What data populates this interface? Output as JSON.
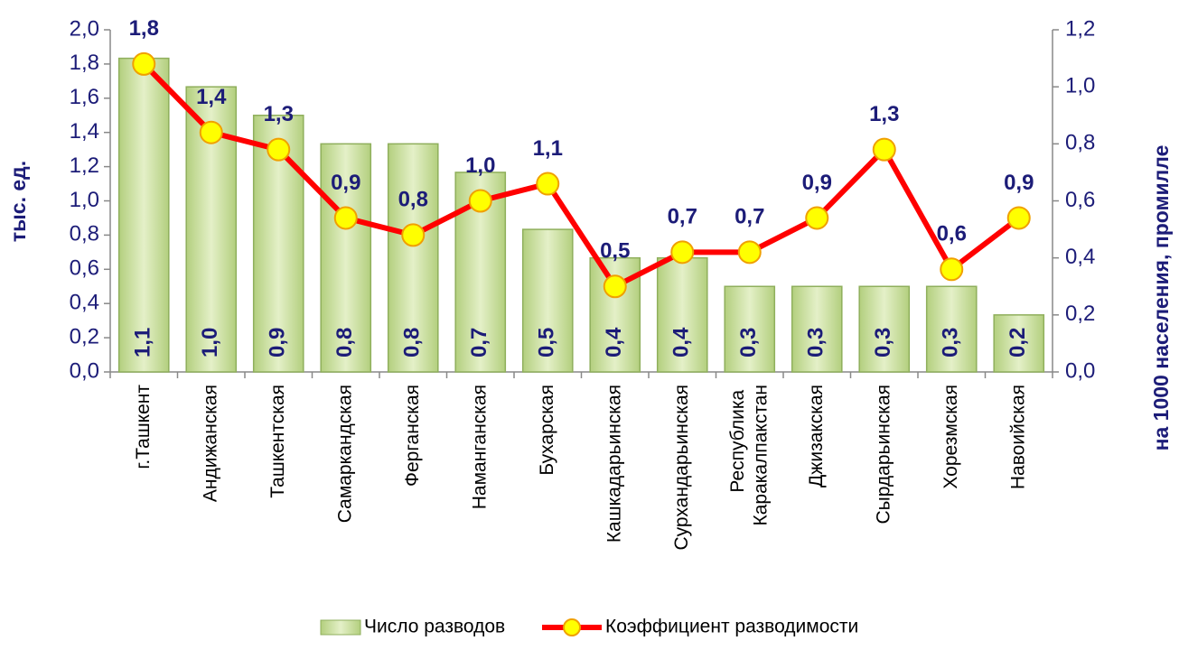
{
  "chart_data": {
    "type": "bar",
    "categories": [
      "г.Ташкент",
      "Андижанская",
      "Ташкентская",
      "Самаркандская",
      "Ферганская",
      "Наманганская",
      "Бухарская",
      "Кашкадарьинская",
      "Сурхандарьинская",
      "Республика Каракалпакстан",
      "Джизакская",
      "Сырдарьинская",
      "Хорезмская",
      "Навоийская"
    ],
    "y_label": "тыс. ед.",
    "y2_label": "на 1000 населения, промилле",
    "series": [
      {
        "name": "Число разводов",
        "type": "bar",
        "axis": "y2",
        "color": "#c4dc96",
        "values": [
          1.1,
          1.0,
          0.9,
          0.8,
          0.8,
          0.7,
          0.5,
          0.4,
          0.4,
          0.3,
          0.3,
          0.3,
          0.3,
          0.2
        ],
        "value_labels": [
          "1,1",
          "1,0",
          "0,9",
          "0,8",
          "0,8",
          "0,7",
          "0,5",
          "0,4",
          "0,4",
          "0,3",
          "0,3",
          "0,3",
          "0,3",
          "0,2"
        ]
      },
      {
        "name": "Коэффициент разводимости",
        "type": "line",
        "axis": "y",
        "color": "#ff0000",
        "marker_color": "#ffff00",
        "values": [
          1.8,
          1.4,
          1.3,
          0.9,
          0.8,
          1.0,
          1.1,
          0.5,
          0.7,
          0.7,
          0.9,
          1.3,
          0.6,
          0.9
        ],
        "value_labels": [
          "1,8",
          "1,4",
          "1,3",
          "0,9",
          "0,8",
          "1,0",
          "1,1",
          "0,5",
          "0,7",
          "0,7",
          "0,9",
          "1,3",
          "0,6",
          "0,9"
        ]
      }
    ],
    "ylim": [
      0,
      2.0
    ],
    "yticks": [
      {
        "value": 0,
        "label": "0,0"
      },
      {
        "value": 0.2,
        "label": "0,2"
      },
      {
        "value": 0.4,
        "label": "0,4"
      },
      {
        "value": 0.6,
        "label": "0,6"
      },
      {
        "value": 0.8,
        "label": "0,8"
      },
      {
        "value": 1.0,
        "label": "1,0"
      },
      {
        "value": 1.2,
        "label": "1,2"
      },
      {
        "value": 1.4,
        "label": "1,4"
      },
      {
        "value": 1.6,
        "label": "1,6"
      },
      {
        "value": 1.8,
        "label": "1,8"
      },
      {
        "value": 2.0,
        "label": "2,0"
      }
    ],
    "y2lim": [
      0,
      1.2
    ],
    "y2ticks": [
      {
        "value": 0,
        "label": "0,0"
      },
      {
        "value": 0.2,
        "label": "0,2"
      },
      {
        "value": 0.4,
        "label": "0,4"
      },
      {
        "value": 0.6,
        "label": "0,6"
      },
      {
        "value": 0.8,
        "label": "0,8"
      },
      {
        "value": 1.0,
        "label": "1,0"
      },
      {
        "value": 1.2,
        "label": "1,2"
      }
    ],
    "grid": false,
    "legend": "bottom"
  }
}
